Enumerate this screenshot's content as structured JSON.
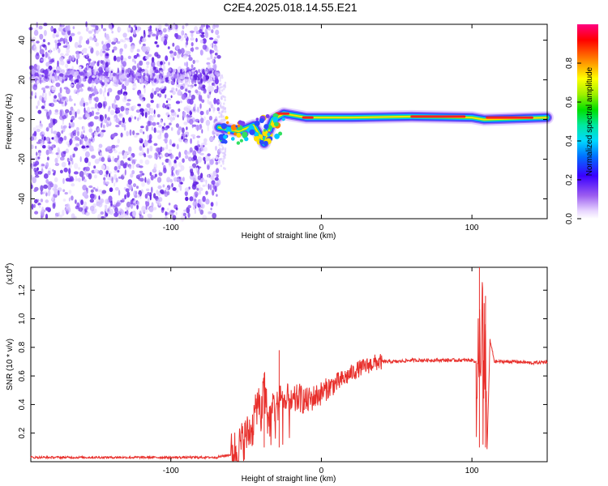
{
  "title": "C2E4.2025.018.14.55.E21",
  "chart_data": [
    {
      "type": "heatmap",
      "xlabel": "Height of straight line (km)",
      "ylabel": "Frequency (Hz)",
      "xlim": [
        -193,
        150
      ],
      "ylim": [
        -50,
        48
      ],
      "x_ticks": [
        -100,
        0,
        100
      ],
      "y_ticks": [
        -40,
        -20,
        0,
        20,
        40
      ],
      "colorbar": {
        "label": "Normalized spectral amplitude",
        "range": [
          0,
          1
        ],
        "ticks": [
          0.0,
          0.2,
          0.4,
          0.6,
          0.8
        ],
        "tick_labels": [
          "0.0",
          "0.2",
          "0.4",
          "0.6",
          "0.8"
        ]
      },
      "features": {
        "noise_region_x": [
          -193,
          -68
        ],
        "noise_band_freq": 22,
        "signal_track": [
          {
            "x": -68,
            "f": -4
          },
          {
            "x": -55,
            "f": -6
          },
          {
            "x": -45,
            "f": -3
          },
          {
            "x": -38,
            "f": -12
          },
          {
            "x": -32,
            "f": 0
          },
          {
            "x": -25,
            "f": 3
          },
          {
            "x": -10,
            "f": 1
          },
          {
            "x": 20,
            "f": 1
          },
          {
            "x": 60,
            "f": 1.5
          },
          {
            "x": 100,
            "f": 1
          },
          {
            "x": 108,
            "f": 0
          },
          {
            "x": 150,
            "f": 1
          }
        ]
      }
    },
    {
      "type": "line",
      "xlabel": "Height of straight line (km)",
      "ylabel": "SNR (10 * v/v)",
      "y_multiplier": "(x10",
      "y_multiplier_exp": "4",
      "y_multiplier_close": ")",
      "xlim": [
        -193,
        150
      ],
      "ylim": [
        0,
        1.36
      ],
      "x_ticks": [
        -100,
        0,
        100
      ],
      "y_ticks": [
        0.2,
        0.4,
        0.6,
        0.8,
        1.0,
        1.2
      ],
      "y_tick_labels": [
        "0.2",
        "0.4",
        "0.6",
        "0.8",
        "1.0",
        "1.2"
      ],
      "series": [
        {
          "color": "#e8302c",
          "x": [
            -193,
            -150,
            -100,
            -70,
            -60,
            -55,
            -50,
            -45,
            -42,
            -40,
            -38,
            -35,
            -32,
            -30,
            -27,
            -25,
            -22,
            -20,
            -15,
            -10,
            -5,
            0,
            5,
            10,
            15,
            20,
            25,
            30,
            35,
            40,
            50,
            60,
            70,
            80,
            90,
            100,
            103,
            105,
            106,
            107,
            108,
            109,
            110,
            112,
            115,
            120,
            130,
            140,
            150
          ],
          "y": [
            0.03,
            0.03,
            0.03,
            0.03,
            0.05,
            0.1,
            0.18,
            0.25,
            0.45,
            0.3,
            0.55,
            0.25,
            0.4,
            0.35,
            0.5,
            0.35,
            0.45,
            0.4,
            0.45,
            0.42,
            0.45,
            0.48,
            0.52,
            0.55,
            0.58,
            0.62,
            0.65,
            0.67,
            0.69,
            0.7,
            0.7,
            0.71,
            0.71,
            0.71,
            0.71,
            0.71,
            0.7,
            0.65,
            0.6,
            1.34,
            0.3,
            1.1,
            0.05,
            0.85,
            0.7,
            0.7,
            0.7,
            0.69,
            0.7
          ]
        }
      ],
      "annotations": {
        "spikes": [
          {
            "x": -38,
            "y": 0.62
          },
          {
            "x": -28,
            "y": 0.78
          },
          {
            "x": 105,
            "y": 1.36
          },
          {
            "x": 109,
            "y": 1.16
          }
        ]
      }
    }
  ]
}
